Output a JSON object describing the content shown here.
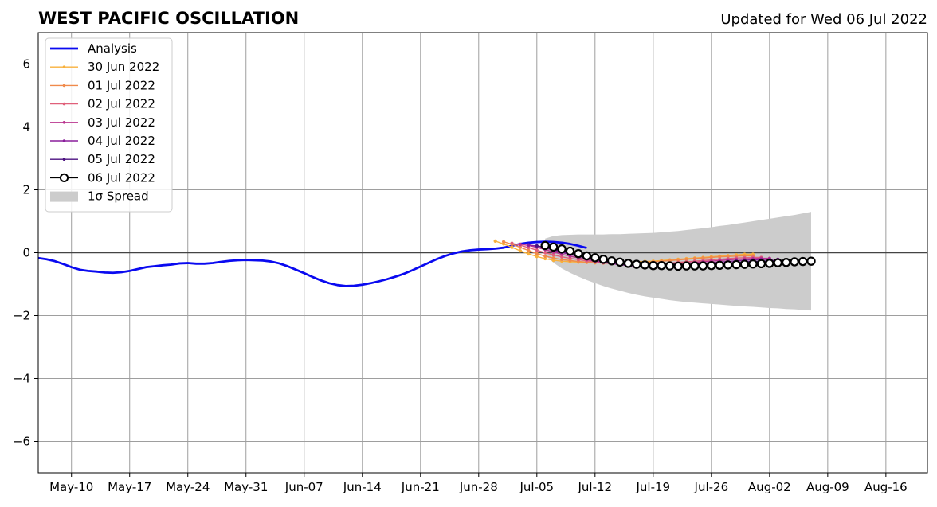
{
  "chart_data": {
    "type": "line",
    "title": "WEST PACIFIC OSCILLATION",
    "subtitle": "Updated for Wed 06 Jul 2022",
    "xlabel": "",
    "ylabel": "",
    "x_range": [
      "2022-05-06",
      "2022-08-21"
    ],
    "ylim": [
      -7,
      7
    ],
    "grid": true,
    "legend_placement": "top-left",
    "x_ticks": [
      {
        "date": "2022-05-10",
        "label": "May-10"
      },
      {
        "date": "2022-05-17",
        "label": "May-17"
      },
      {
        "date": "2022-05-24",
        "label": "May-24"
      },
      {
        "date": "2022-05-31",
        "label": "May-31"
      },
      {
        "date": "2022-06-07",
        "label": "Jun-07"
      },
      {
        "date": "2022-06-14",
        "label": "Jun-14"
      },
      {
        "date": "2022-06-21",
        "label": "Jun-21"
      },
      {
        "date": "2022-06-28",
        "label": "Jun-28"
      },
      {
        "date": "2022-07-05",
        "label": "Jul-05"
      },
      {
        "date": "2022-07-12",
        "label": "Jul-12"
      },
      {
        "date": "2022-07-19",
        "label": "Jul-19"
      },
      {
        "date": "2022-07-26",
        "label": "Jul-26"
      },
      {
        "date": "2022-08-02",
        "label": "Aug-02"
      },
      {
        "date": "2022-08-09",
        "label": "Aug-09"
      },
      {
        "date": "2022-08-16",
        "label": "Aug-16"
      }
    ],
    "y_ticks": [
      {
        "value": 6,
        "label": "6"
      },
      {
        "value": 4,
        "label": "4"
      },
      {
        "value": 2,
        "label": "2"
      },
      {
        "value": 0,
        "label": "0"
      },
      {
        "value": -2,
        "label": "−2"
      },
      {
        "value": -4,
        "label": "−4"
      },
      {
        "value": -6,
        "label": "−6"
      }
    ],
    "analysis": {
      "name": "Analysis",
      "color": "#0a0af0",
      "start": "2022-05-06",
      "values": [
        -0.17,
        -0.21,
        -0.27,
        -0.36,
        -0.46,
        -0.54,
        -0.58,
        -0.6,
        -0.63,
        -0.64,
        -0.62,
        -0.58,
        -0.52,
        -0.46,
        -0.43,
        -0.4,
        -0.38,
        -0.34,
        -0.33,
        -0.35,
        -0.35,
        -0.33,
        -0.29,
        -0.26,
        -0.24,
        -0.23,
        -0.24,
        -0.25,
        -0.28,
        -0.34,
        -0.43,
        -0.54,
        -0.65,
        -0.77,
        -0.88,
        -0.97,
        -1.03,
        -1.06,
        -1.05,
        -1.02,
        -0.97,
        -0.91,
        -0.84,
        -0.76,
        -0.67,
        -0.56,
        -0.44,
        -0.32,
        -0.2,
        -0.1,
        -0.02,
        0.04,
        0.08,
        0.1,
        0.11,
        0.13,
        0.16,
        0.22,
        0.28,
        0.32,
        0.34,
        0.35,
        0.34,
        0.32,
        0.28,
        0.22,
        0.15
      ]
    },
    "forecasts": [
      {
        "name": "30 Jun 2022",
        "color": "#f8b13c",
        "start": "2022-06-30",
        "values": [
          0.37,
          0.28,
          0.17,
          0.06,
          -0.04,
          -0.12,
          -0.19,
          -0.24,
          -0.27,
          -0.29,
          -0.3,
          -0.31,
          -0.32,
          -0.32,
          -0.32,
          -0.31,
          -0.3,
          -0.29,
          -0.28,
          -0.27,
          -0.25,
          -0.23,
          -0.21,
          -0.19,
          -0.17,
          -0.15,
          -0.13,
          -0.11,
          -0.09,
          -0.07,
          -0.05,
          -0.05
        ]
      },
      {
        "name": "01 Jul 2022",
        "color": "#f08a4b",
        "start": "2022-07-01",
        "values": [
          0.35,
          0.27,
          0.17,
          0.07,
          -0.03,
          -0.11,
          -0.17,
          -0.22,
          -0.25,
          -0.28,
          -0.3,
          -0.32,
          -0.33,
          -0.34,
          -0.34,
          -0.33,
          -0.32,
          -0.31,
          -0.29,
          -0.27,
          -0.25,
          -0.23,
          -0.21,
          -0.19,
          -0.17,
          -0.15,
          -0.13,
          -0.12,
          -0.11,
          -0.1,
          -0.1
        ]
      },
      {
        "name": "02 Jul 2022",
        "color": "#e0607a",
        "start": "2022-07-02",
        "values": [
          0.3,
          0.24,
          0.16,
          0.08,
          0.0,
          -0.07,
          -0.13,
          -0.18,
          -0.22,
          -0.26,
          -0.29,
          -0.32,
          -0.34,
          -0.36,
          -0.37,
          -0.37,
          -0.37,
          -0.36,
          -0.35,
          -0.33,
          -0.31,
          -0.29,
          -0.27,
          -0.25,
          -0.23,
          -0.21,
          -0.19,
          -0.17,
          -0.16,
          -0.15,
          -0.15
        ]
      },
      {
        "name": "03 Jul 2022",
        "color": "#b9348e",
        "start": "2022-07-03",
        "values": [
          0.27,
          0.23,
          0.17,
          0.1,
          0.02,
          -0.05,
          -0.11,
          -0.17,
          -0.22,
          -0.27,
          -0.31,
          -0.35,
          -0.38,
          -0.4,
          -0.41,
          -0.41,
          -0.4,
          -0.39,
          -0.37,
          -0.35,
          -0.33,
          -0.31,
          -0.29,
          -0.27,
          -0.25,
          -0.23,
          -0.21,
          -0.2,
          -0.19,
          -0.18,
          -0.18
        ]
      },
      {
        "name": "04 Jul 2022",
        "color": "#8a1e9b",
        "start": "2022-07-04",
        "values": [
          0.25,
          0.21,
          0.15,
          0.08,
          0.01,
          -0.06,
          -0.12,
          -0.18,
          -0.24,
          -0.29,
          -0.34,
          -0.38,
          -0.41,
          -0.43,
          -0.44,
          -0.44,
          -0.43,
          -0.42,
          -0.4,
          -0.38,
          -0.36,
          -0.34,
          -0.32,
          -0.3,
          -0.28,
          -0.26,
          -0.24,
          -0.23,
          -0.22,
          -0.21,
          -0.21
        ]
      },
      {
        "name": "05 Jul 2022",
        "color": "#4b1180",
        "start": "2022-07-05",
        "values": [
          0.22,
          0.17,
          0.11,
          0.05,
          -0.02,
          -0.08,
          -0.14,
          -0.2,
          -0.26,
          -0.31,
          -0.35,
          -0.38,
          -0.41,
          -0.43,
          -0.44,
          -0.44,
          -0.44,
          -0.43,
          -0.42,
          -0.41,
          -0.39,
          -0.37,
          -0.35,
          -0.33,
          -0.31,
          -0.29,
          -0.28,
          -0.27,
          -0.26,
          -0.25,
          -0.25
        ]
      }
    ],
    "latest": {
      "name": "06 Jul 2022",
      "color": "#000000",
      "start": "2022-07-06",
      "values": [
        0.23,
        0.18,
        0.12,
        0.05,
        -0.03,
        -0.1,
        -0.16,
        -0.21,
        -0.26,
        -0.3,
        -0.34,
        -0.37,
        -0.39,
        -0.41,
        -0.41,
        -0.42,
        -0.43,
        -0.42,
        -0.42,
        -0.42,
        -0.41,
        -0.4,
        -0.39,
        -0.38,
        -0.37,
        -0.36,
        -0.35,
        -0.34,
        -0.32,
        -0.31,
        -0.29,
        -0.28,
        -0.27
      ]
    },
    "spread": {
      "name": "1σ Spread",
      "color": "#cccccc",
      "start": "2022-07-06",
      "upper": [
        0.45,
        0.53,
        0.56,
        0.57,
        0.58,
        0.58,
        0.58,
        0.58,
        0.59,
        0.59,
        0.6,
        0.61,
        0.62,
        0.63,
        0.65,
        0.67,
        0.69,
        0.72,
        0.75,
        0.78,
        0.81,
        0.85,
        0.88,
        0.92,
        0.96,
        1.0,
        1.04,
        1.08,
        1.12,
        1.16,
        1.2,
        1.25,
        1.3
      ],
      "lower": [
        -0.08,
        -0.32,
        -0.5,
        -0.64,
        -0.76,
        -0.87,
        -0.97,
        -1.06,
        -1.14,
        -1.21,
        -1.28,
        -1.34,
        -1.39,
        -1.43,
        -1.47,
        -1.51,
        -1.54,
        -1.57,
        -1.59,
        -1.61,
        -1.63,
        -1.65,
        -1.67,
        -1.69,
        -1.71,
        -1.72,
        -1.74,
        -1.76,
        -1.77,
        -1.79,
        -1.8,
        -1.82,
        -1.84
      ]
    }
  }
}
